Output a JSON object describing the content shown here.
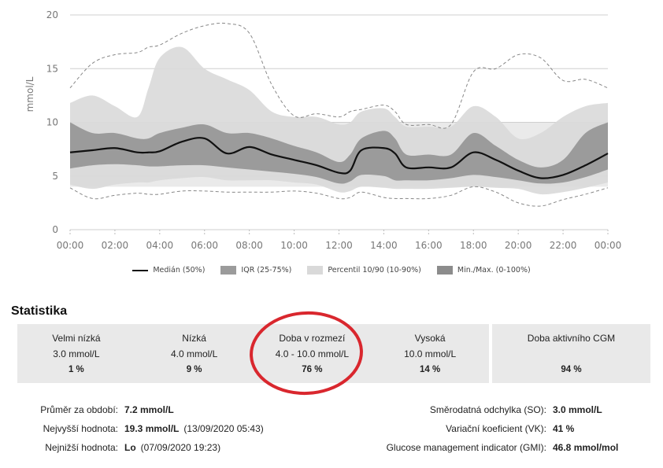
{
  "chart_data": {
    "type": "area",
    "ylabel": "mmol/L",
    "ylim": [
      0,
      20
    ],
    "yticks": [
      "0",
      "5",
      "10",
      "15",
      "20"
    ],
    "xticks": [
      "00:00",
      "02:00",
      "04:00",
      "06:00",
      "08:00",
      "10:00",
      "12:00",
      "14:00",
      "16:00",
      "18:00",
      "20:00",
      "22:00",
      "00:00"
    ],
    "target_range": [
      4.0,
      10.0
    ],
    "x_hours": [
      0,
      1,
      2,
      3,
      3.5,
      4,
      5,
      6,
      7,
      8,
      9,
      10,
      11,
      12,
      12.5,
      13,
      14,
      14.5,
      15,
      16,
      17,
      18,
      19,
      20,
      21,
      22,
      23,
      24
    ],
    "median": [
      7.2,
      7.4,
      7.6,
      7.2,
      7.2,
      7.3,
      8.2,
      8.5,
      7.1,
      7.7,
      7.0,
      6.5,
      6.0,
      5.3,
      5.5,
      7.4,
      7.6,
      7.1,
      5.8,
      5.8,
      5.8,
      7.2,
      6.5,
      5.5,
      4.8,
      5.1,
      6.0,
      7.1
    ],
    "iqr_low": [
      5.7,
      6.0,
      6.1,
      6.0,
      5.9,
      5.9,
      6.0,
      6.0,
      5.8,
      5.6,
      5.4,
      5.2,
      4.9,
      4.3,
      4.5,
      5.1,
      5.0,
      4.6,
      4.6,
      4.6,
      4.8,
      5.1,
      4.9,
      4.6,
      4.3,
      4.4,
      4.9,
      5.6
    ],
    "iqr_high": [
      10.0,
      9.0,
      9.0,
      8.5,
      8.5,
      9.0,
      9.5,
      9.8,
      9.0,
      9.0,
      8.5,
      7.8,
      7.2,
      6.3,
      7.0,
      8.5,
      9.2,
      8.5,
      7.0,
      7.0,
      7.0,
      9.0,
      7.8,
      6.5,
      5.8,
      6.5,
      9.0,
      10.0
    ],
    "p10": [
      4.2,
      3.8,
      4.2,
      4.4,
      4.4,
      4.6,
      4.8,
      4.9,
      4.6,
      4.6,
      4.6,
      4.4,
      4.2,
      3.5,
      3.6,
      4.0,
      3.9,
      3.8,
      3.8,
      3.8,
      3.9,
      4.0,
      3.9,
      3.8,
      3.3,
      3.5,
      3.9,
      4.4
    ],
    "p90": [
      11.8,
      12.5,
      11.5,
      10.5,
      13.2,
      16.0,
      17.0,
      15.0,
      14.0,
      13.0,
      11.0,
      10.5,
      10.5,
      9.8,
      10.0,
      11.0,
      11.3,
      10.5,
      9.6,
      9.6,
      9.6,
      11.5,
      10.5,
      8.5,
      9.0,
      10.5,
      11.5,
      11.8
    ],
    "min": [
      3.9,
      2.9,
      3.2,
      3.4,
      3.3,
      3.3,
      3.6,
      3.6,
      3.5,
      3.5,
      3.5,
      3.6,
      3.4,
      2.9,
      3.0,
      3.5,
      3.0,
      2.9,
      2.9,
      2.9,
      3.2,
      4.0,
      3.5,
      2.5,
      2.2,
      2.8,
      3.3,
      3.9
    ],
    "max": [
      13.2,
      15.5,
      16.3,
      16.5,
      17.0,
      17.2,
      18.3,
      19.0,
      19.2,
      18.3,
      13.5,
      10.6,
      10.8,
      10.5,
      11.0,
      11.2,
      11.6,
      11.0,
      9.8,
      9.8,
      9.8,
      14.7,
      15.0,
      16.3,
      16.0,
      13.9,
      14.0,
      13.2
    ],
    "legend": [
      {
        "label": "Medián (50%)",
        "kind": "line",
        "color": "#111111"
      },
      {
        "label": "IQR (25-75%)",
        "kind": "box",
        "color": "#9b9b9b"
      },
      {
        "label": "Percentil 10/90 (10-90%)",
        "kind": "box",
        "color": "#d9d9d9"
      },
      {
        "label": "Min./Max. (0-100%)",
        "kind": "box",
        "color": "#8c8c8c"
      }
    ],
    "colors": {
      "iqr": "#9b9b9b",
      "percentile": "#d9d9d9",
      "target": "#eaeaea",
      "median": "#111111",
      "minmax": "#888888",
      "highlight": "#d9272e"
    }
  },
  "stats": {
    "title": "Statistika",
    "ranges": [
      {
        "name": "Velmi nízká",
        "range": "3.0 mmol/L",
        "percent": "1 %"
      },
      {
        "name": "Nízká",
        "range": "4.0 mmol/L",
        "percent": "9 %"
      },
      {
        "name": "Doba v rozmezí",
        "range": "4.0 - 10.0 mmol/L",
        "percent": "76 %"
      },
      {
        "name": "Vysoká",
        "range": "10.0 mmol/L",
        "percent": "14 %"
      }
    ],
    "cgm": {
      "name": "Doba aktivního CGM",
      "percent": "94 %"
    }
  },
  "summary_left": [
    {
      "label": "Průměr za období:",
      "value": "7.2 mmol/L",
      "extra": ""
    },
    {
      "label": "Nejvyšší hodnota:",
      "value": "19.3 mmol/L",
      "extra": "(13/09/2020 05:43)"
    },
    {
      "label": "Nejnižší hodnota:",
      "value": "Lo",
      "extra": "(07/09/2020 19:23)"
    }
  ],
  "summary_right": [
    {
      "label": "Směrodatná odchylka (SO):",
      "value": "3.0 mmol/L"
    },
    {
      "label": "Variační koeficient (VK):",
      "value": "41 %"
    },
    {
      "label": "Glucose management indicator (GMI):",
      "value": "46.8 mmol/mol"
    }
  ]
}
